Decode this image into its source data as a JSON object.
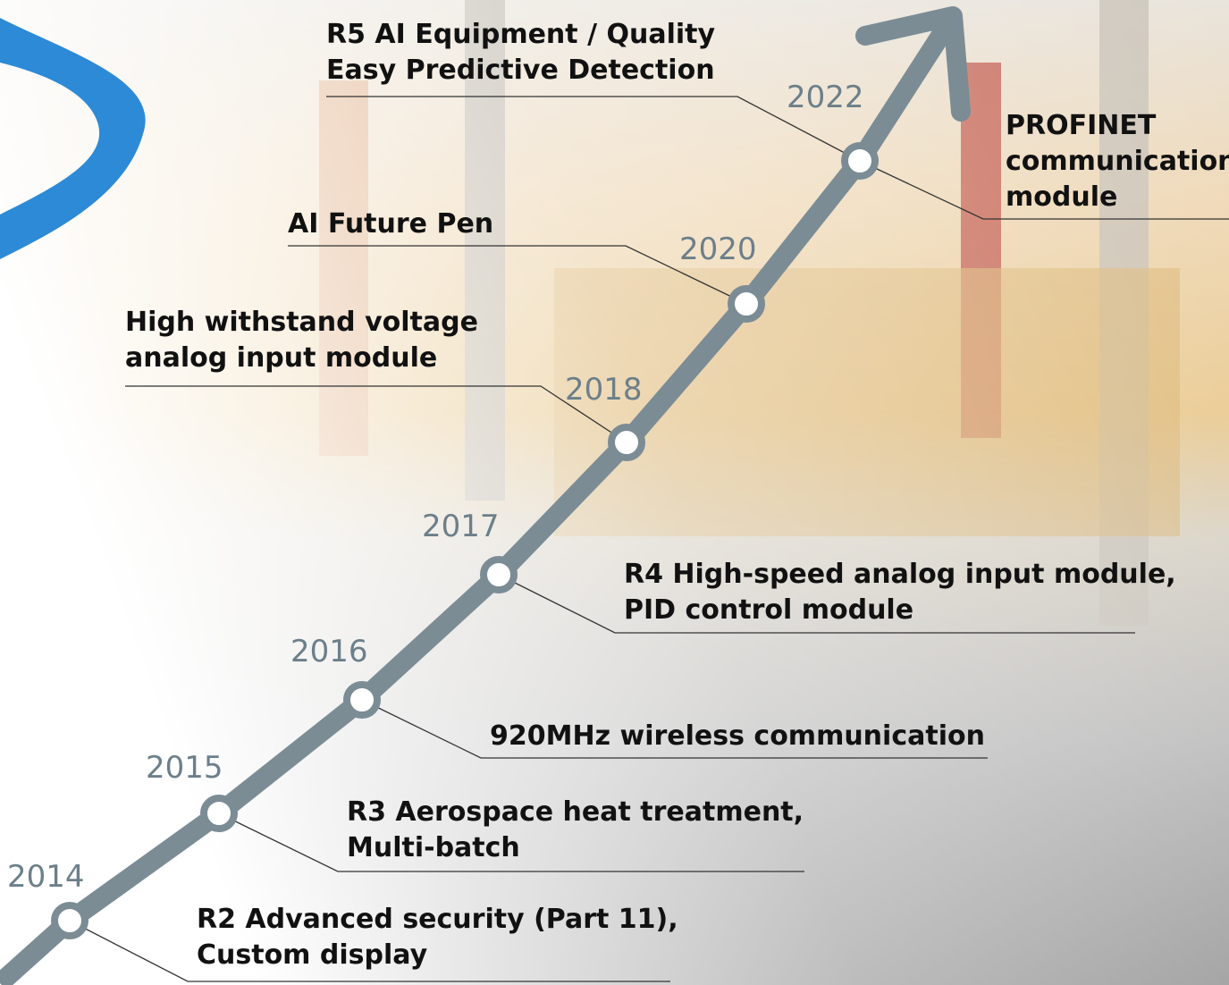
{
  "milestones": [
    {
      "year": "2014",
      "notes": [
        [
          "R2 Advanced security (Part 11),",
          "Custom display"
        ]
      ]
    },
    {
      "year": "2015",
      "notes": [
        [
          "R3 Aerospace heat treatment,",
          "Multi-batch"
        ]
      ]
    },
    {
      "year": "2016",
      "notes": [
        [
          "920MHz wireless communication"
        ]
      ]
    },
    {
      "year": "2017",
      "notes": [
        [
          "R4 High-speed analog input module,",
          "PID control module"
        ]
      ]
    },
    {
      "year": "2018",
      "notes": [
        [
          "High withstand voltage",
          "analog input module"
        ]
      ]
    },
    {
      "year": "2020",
      "notes": [
        [
          "AI Future Pen"
        ]
      ]
    },
    {
      "year": "2022",
      "notes": [
        [
          "R5 AI Equipment / Quality",
          "Easy Predictive Detection"
        ],
        [
          "PROFINET",
          "communication",
          "module"
        ]
      ]
    }
  ]
}
